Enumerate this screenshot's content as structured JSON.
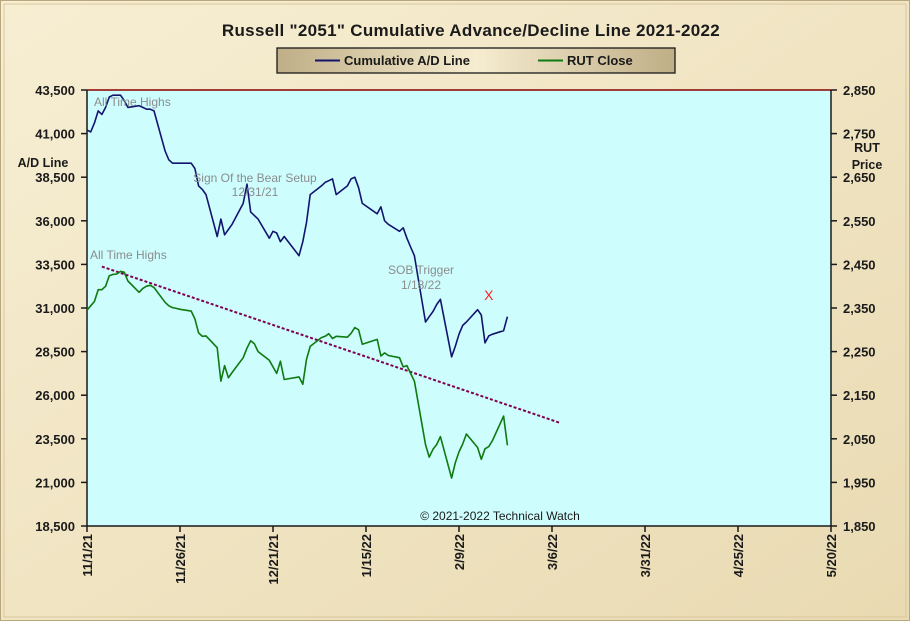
{
  "colors": {
    "background": "#f2e6c6",
    "plot_background": "#cdfdfd",
    "ad_line": "#14146e",
    "rut_line": "#0f7a0f",
    "trendline": "#800050",
    "top_line": "#8b0000",
    "marker": "#ff2020"
  },
  "chart_data": {
    "type": "line",
    "title": "Russell \"2051\" Cumulative Advance/Decline Line 2021-2022",
    "legend": [
      "Cumulative A/D Line",
      "RUT Close"
    ],
    "legend_position": "top-center",
    "grid": false,
    "x_ticks": [
      "11/1/21",
      "11/26/21",
      "12/21/21",
      "1/15/22",
      "2/9/22",
      "3/6/22",
      "3/31/22",
      "4/25/22",
      "5/20/22"
    ],
    "y_left": {
      "label": "A/D Line",
      "ticks": [
        "43,500",
        "41,000",
        "38,500",
        "36,000",
        "33,500",
        "31,000",
        "28,500",
        "26,000",
        "23,500",
        "21,000",
        "18,500"
      ],
      "range": [
        18500,
        43500
      ]
    },
    "y_right": {
      "label": "RUT Price",
      "label_lines": [
        "RUT",
        "Price"
      ],
      "ticks": [
        "2,850",
        "2,750",
        "2,650",
        "2,550",
        "2,450",
        "2,350",
        "2,250",
        "2,150",
        "2,050",
        "1,950",
        "1,850"
      ],
      "range": [
        1850,
        2850
      ]
    },
    "x_range_days": [
      0,
      200
    ],
    "series": [
      {
        "name": "Cumulative A/D Line",
        "axis": "left",
        "x": [
          0,
          1,
          2,
          3,
          4,
          5,
          6,
          7,
          8,
          9,
          10,
          11,
          14,
          15,
          16,
          17,
          18,
          21,
          22,
          23,
          24,
          25,
          28,
          29,
          30,
          31,
          32,
          35,
          36,
          37,
          38,
          39,
          42,
          43,
          44,
          45,
          46,
          49,
          50,
          51,
          52,
          53,
          57,
          58,
          59,
          60,
          63,
          64,
          65,
          66,
          67,
          70,
          71,
          72,
          73,
          74,
          78,
          79,
          80,
          81,
          84,
          85,
          86,
          87,
          88,
          91,
          92,
          93,
          94,
          95,
          98,
          99,
          100,
          101,
          102,
          105,
          106,
          107,
          108,
          109,
          112,
          113
        ],
        "values": [
          41200,
          41100,
          41600,
          42300,
          42100,
          42500,
          43100,
          43200,
          43200,
          43200,
          42900,
          42500,
          42600,
          42500,
          42400,
          42400,
          42300,
          40000,
          39500,
          39300,
          39300,
          39300,
          39300,
          39000,
          38000,
          37800,
          37500,
          35100,
          36100,
          35200,
          35500,
          35800,
          37000,
          38100,
          36500,
          36300,
          36100,
          35000,
          35400,
          35300,
          34800,
          35100,
          34000,
          34800,
          35900,
          37500,
          38000,
          38200,
          38300,
          38400,
          37500,
          38000,
          38400,
          38500,
          37900,
          37000,
          36400,
          36800,
          36000,
          35800,
          35400,
          35600,
          35000,
          34500,
          34000,
          30200,
          30500,
          30800,
          31200,
          31500,
          28200,
          28800,
          29500,
          30000,
          30200,
          30900,
          30600,
          29000,
          29400,
          29500,
          29700,
          30500
        ]
      },
      {
        "name": "RUT Close",
        "axis": "right",
        "x": [
          0,
          1,
          2,
          3,
          4,
          5,
          6,
          7,
          8,
          9,
          10,
          11,
          14,
          15,
          16,
          17,
          18,
          21,
          22,
          23,
          24,
          25,
          28,
          29,
          30,
          31,
          32,
          35,
          36,
          37,
          38,
          39,
          42,
          43,
          44,
          45,
          46,
          49,
          50,
          51,
          52,
          53,
          57,
          58,
          59,
          60,
          63,
          64,
          65,
          66,
          67,
          70,
          71,
          72,
          73,
          74,
          78,
          79,
          80,
          81,
          84,
          85,
          86,
          87,
          88,
          91,
          92,
          93,
          94,
          95,
          98,
          99,
          100,
          101,
          102,
          105,
          106,
          107,
          108,
          109,
          112,
          113
        ],
        "values": [
          2345,
          2355,
          2365,
          2392,
          2392,
          2400,
          2424,
          2427,
          2428,
          2434,
          2432,
          2412,
          2386,
          2395,
          2400,
          2402,
          2397,
          2363,
          2355,
          2351,
          2349,
          2347,
          2343,
          2325,
          2293,
          2285,
          2286,
          2259,
          2182,
          2218,
          2190,
          2202,
          2236,
          2258,
          2275,
          2268,
          2250,
          2230,
          2215,
          2200,
          2228,
          2186,
          2192,
          2175,
          2232,
          2262,
          2282,
          2285,
          2291,
          2280,
          2285,
          2283,
          2292,
          2305,
          2300,
          2267,
          2278,
          2240,
          2247,
          2241,
          2236,
          2215,
          2218,
          2200,
          2182,
          2037,
          2008,
          2026,
          2037,
          2055,
          1960,
          1995,
          2020,
          2038,
          2061,
          2030,
          2003,
          2027,
          2032,
          2046,
          2102,
          2035
        ]
      }
    ],
    "trendline": {
      "label": "",
      "x": [
        4,
        127
      ],
      "y_right": [
        2445,
        2087
      ]
    },
    "marker": {
      "label": "X",
      "x": 108,
      "y_left": 31750
    },
    "annotations": [
      {
        "text": "All Time Highs",
        "lines": [
          "All Time Highs"
        ]
      },
      {
        "text": "Sign Of the Bear Setup 12/31/21",
        "lines": [
          "Sign Of the Bear Setup",
          "12/31/21"
        ]
      },
      {
        "text": "All Time Highs",
        "lines": [
          "All Time Highs"
        ]
      },
      {
        "text": "SOB Trigger 1/18/22",
        "lines": [
          "SOB Trigger",
          "1/18/22"
        ]
      }
    ],
    "copyright": "© 2021-2022  Technical Watch"
  }
}
